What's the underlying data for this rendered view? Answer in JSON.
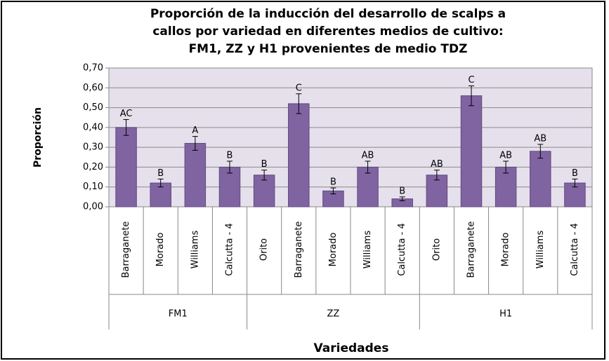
{
  "chart_data": {
    "type": "bar",
    "title": [
      "Proporción de la inducción del desarrollo de scalps a",
      "callos por variedad en diferentes medios de cultivo:",
      "FM1, ZZ y H1 provenientes de medio TDZ"
    ],
    "y_label": "Proporción",
    "x_label": "Variedades",
    "groups": [
      {
        "name": "FM1",
        "categories": [
          "Barraganete",
          "Morado",
          "Williams",
          "Calcutta - 4"
        ]
      },
      {
        "name": "ZZ",
        "categories": [
          "Orito",
          "Barraganete",
          "Morado",
          "Williams",
          "Calcutta - 4"
        ]
      },
      {
        "name": "H1",
        "categories": [
          "Orito",
          "Barraganete",
          "Morado",
          "Williams",
          "Calcutta - 4"
        ]
      }
    ],
    "values": [
      0.4,
      0.12,
      0.32,
      0.2,
      0.16,
      0.52,
      0.08,
      0.2,
      0.04,
      0.16,
      0.56,
      0.2,
      0.28,
      0.12
    ],
    "errors": [
      0.04,
      0.02,
      0.035,
      0.03,
      0.025,
      0.05,
      0.015,
      0.03,
      0.01,
      0.025,
      0.05,
      0.03,
      0.035,
      0.02
    ],
    "bar_labels": [
      "AC",
      "B",
      "A",
      "B",
      "B",
      "C",
      "B",
      "AB",
      "B",
      "AB",
      "C",
      "AB",
      "AB",
      "B"
    ],
    "color": "#8064a2",
    "ylim": [
      0,
      0.7
    ],
    "yticks": [
      {
        "value": 0,
        "label": "0,00"
      },
      {
        "value": 0.1,
        "label": "0,10"
      },
      {
        "value": 0.2,
        "label": "0,20"
      },
      {
        "value": 0.3,
        "label": "0,30"
      },
      {
        "value": 0.4,
        "label": "0,40"
      },
      {
        "value": 0.5,
        "label": "0,50"
      },
      {
        "value": 0.6,
        "label": "0,60"
      },
      {
        "value": 0.7,
        "label": "0,70"
      }
    ],
    "grid": true
  }
}
